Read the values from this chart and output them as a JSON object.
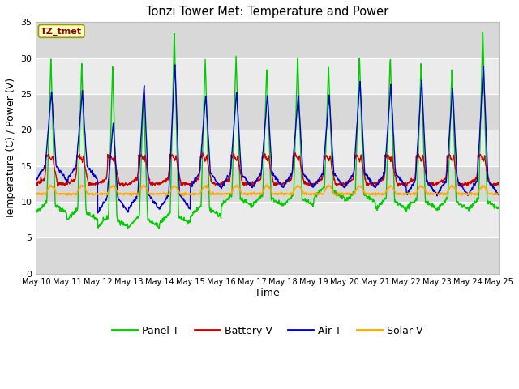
{
  "title": "Tonzi Tower Met: Temperature and Power",
  "xlabel": "Time",
  "ylabel": "Temperature (C) / Power (V)",
  "ylim": [
    0,
    35
  ],
  "yticks": [
    0,
    5,
    10,
    15,
    20,
    25,
    30,
    35
  ],
  "x_labels": [
    "May 10",
    "May 11",
    "May 12",
    "May 13",
    "May 14",
    "May 15",
    "May 16",
    "May 17",
    "May 18",
    "May 19",
    "May 20",
    "May 21",
    "May 22",
    "May 23",
    "May 24",
    "May 25"
  ],
  "annotation_text": "TZ_tmet",
  "annotation_color": "#8B0000",
  "annotation_bg": "#FFFFC0",
  "annotation_edge": "#999900",
  "outer_bg": "#FFFFFF",
  "plot_bg_light": "#EBEBEB",
  "plot_bg_dark": "#D8D8D8",
  "colors": {
    "Panel T": "#00CC00",
    "Battery V": "#CC0000",
    "Air T": "#0000CC",
    "Solar V": "#FFA500"
  },
  "legend_entries": [
    "Panel T",
    "Battery V",
    "Air T",
    "Solar V"
  ],
  "figsize": [
    6.4,
    4.8
  ],
  "dpi": 100
}
